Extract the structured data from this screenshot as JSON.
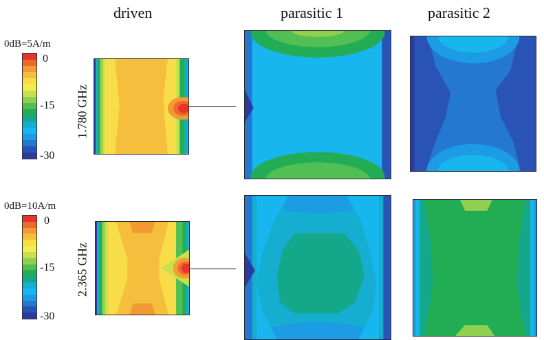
{
  "headers": {
    "driven": "driven",
    "parasitic1": "parasitic 1",
    "parasitic2": "parasitic 2"
  },
  "rows": [
    {
      "reference": "0dB=5A/m",
      "frequency": "1.780 GHz",
      "ticks": [
        "0",
        "-15",
        "-30"
      ]
    },
    {
      "reference": "0dB=10A/m",
      "frequency": "2.365 GHz",
      "ticks": [
        "0",
        "-15",
        "-30"
      ]
    }
  ],
  "colorscale": [
    "#e8342a",
    "#ee6a2c",
    "#f29a33",
    "#f5be3c",
    "#f8dc48",
    "#f2ec4c",
    "#c8e04c",
    "#8fd050",
    "#52bf55",
    "#22ad55",
    "#14a88a",
    "#15aed0",
    "#18b6ee",
    "#1d9ce6",
    "#2478d2",
    "#2954b6",
    "#2b3c9e"
  ],
  "colors": {
    "red": "#e8342a",
    "orange": "#f5a033",
    "yellow": "#f8d848",
    "green": "#22ad55",
    "cyan": "#18b6ee",
    "blue": "#2a62c4",
    "navy": "#2b3c9e",
    "lightgreen": "#8fcf50",
    "teal": "#14a88a"
  }
}
